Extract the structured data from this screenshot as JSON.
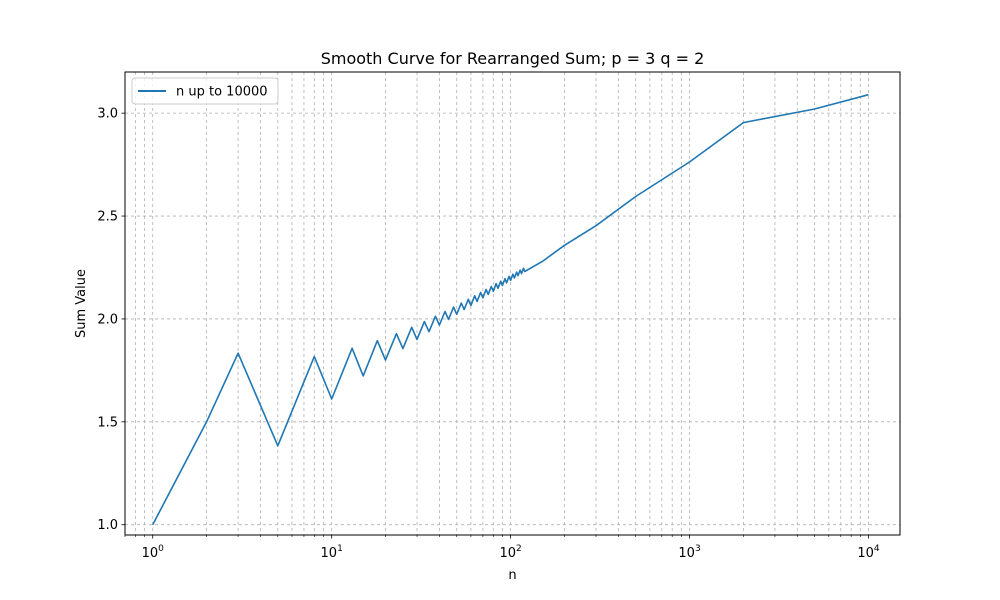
{
  "chart_data": {
    "type": "line",
    "title": "Smooth Curve for Rearranged Sum; p = 3 q = 2",
    "xlabel": "n",
    "ylabel": "Sum Value",
    "xscale": "log",
    "xlim": [
      0.7,
      15000
    ],
    "ylim": [
      0.95,
      3.2
    ],
    "x_ticks": [
      {
        "value": 1,
        "base": "10",
        "exp": "0"
      },
      {
        "value": 10,
        "base": "10",
        "exp": "1"
      },
      {
        "value": 100,
        "base": "10",
        "exp": "2"
      },
      {
        "value": 1000,
        "base": "10",
        "exp": "3"
      },
      {
        "value": 10000,
        "base": "10",
        "exp": "4"
      }
    ],
    "y_ticks": [
      {
        "value": 1.0,
        "label": "1.0"
      },
      {
        "value": 1.5,
        "label": "1.5"
      },
      {
        "value": 2.0,
        "label": "2.0"
      },
      {
        "value": 2.5,
        "label": "2.5"
      },
      {
        "value": 3.0,
        "label": "3.0"
      }
    ],
    "grid": true,
    "grid_style": "dashed",
    "legend_position": "top-left",
    "series": [
      {
        "name": "n up to 10000",
        "color": "#1f77b4",
        "x": [
          1,
          2,
          3,
          5,
          8,
          10,
          13,
          15,
          18,
          20,
          23,
          25,
          28,
          30,
          33,
          35,
          38,
          40,
          43,
          45,
          48,
          50,
          53,
          55,
          58,
          60,
          63,
          65,
          68,
          70,
          73,
          75,
          78,
          80,
          83,
          85,
          88,
          90,
          93,
          95,
          98,
          100,
          103,
          105,
          108,
          110,
          113,
          115,
          118,
          120,
          150,
          200,
          300,
          500,
          1000,
          2000,
          5000,
          10000
        ],
        "y": [
          1.0,
          1.5,
          1.8333,
          1.3833,
          1.8175,
          1.6107,
          1.8574,
          1.7232,
          1.8944,
          1.8001,
          1.9283,
          1.8558,
          1.9591,
          1.9007,
          1.9871,
          1.9379,
          2.0126,
          1.9698,
          2.0359,
          1.9977,
          2.0573,
          2.0226,
          2.0771,
          2.0453,
          2.0955,
          2.066,
          2.1126,
          2.085,
          2.1286,
          2.1026,
          2.1436,
          2.119,
          2.1577,
          2.1344,
          2.171,
          2.1488,
          2.1836,
          2.1624,
          2.1955,
          2.1753,
          2.2067,
          2.1875,
          2.2174,
          2.199,
          2.2276,
          2.21,
          2.2373,
          2.2204,
          2.2466,
          2.2303,
          2.2788,
          2.3576,
          2.4531,
          2.5948,
          2.7627,
          2.9542,
          3.0201,
          3.0896
        ]
      }
    ]
  }
}
